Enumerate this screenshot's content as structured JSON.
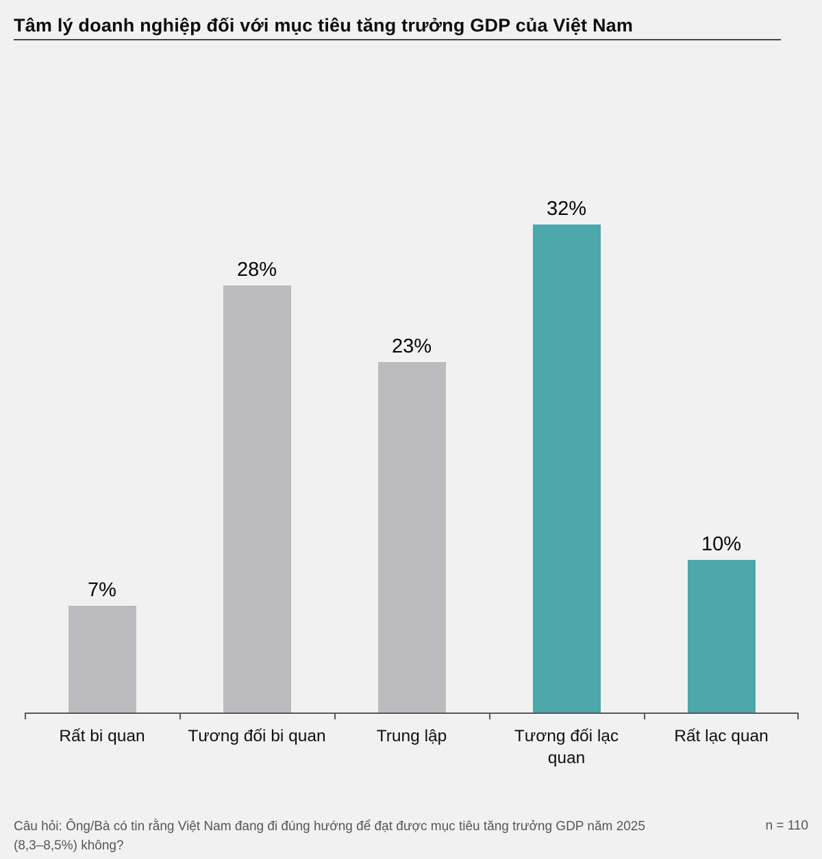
{
  "header": {
    "title": "Tâm lý doanh nghiệp đối với mục tiêu tăng trưởng GDP của Việt Nam"
  },
  "chart_data": {
    "type": "bar",
    "title": "Tâm lý doanh nghiệp đối với mục tiêu tăng trưởng GDP của Việt Nam",
    "categories": [
      "Rất bi quan",
      "Tương đối bi quan",
      "Trung lập",
      "Tương đối lạc quan",
      "Rất lạc quan"
    ],
    "display_labels": [
      "Rất bi quan",
      "Tương đối bi quan",
      "Trung lập",
      "Tương đối lạc\nquan",
      "Rất lạc quan"
    ],
    "values": [
      7,
      28,
      23,
      32,
      10
    ],
    "value_labels": [
      "7%",
      "28%",
      "23%",
      "32%",
      "10%"
    ],
    "colors": [
      "#bcbcbe",
      "#bcbcbe",
      "#bcbcbe",
      "#4ba7a9",
      "#4ba7a9"
    ],
    "xlabel": "",
    "ylabel": "",
    "ylim": [
      0,
      35
    ],
    "grid": false,
    "legend": false,
    "unit": "%"
  },
  "colors": {
    "background": "#f1f1f1",
    "bar_gray": "#bcbcbe",
    "bar_teal": "#4ba7a9",
    "axis": "#55555a",
    "footnote_text": "#56565a",
    "title_text": "#0d0d0d"
  },
  "footer": {
    "question_line1": "Câu hỏi: Ông/Bà có tin rằng Việt Nam đang đi đúng hướng để đạt được mục tiêu tăng trưởng GDP năm 2025",
    "question_line2": "(8,3–8,5%) không?",
    "question_full": "Câu hỏi: Ông/Bà có tin rằng Việt Nam đang đi đúng hướng để đạt được mục tiêu tăng trưởng GDP năm 2025 (8,3–8,5%) không?",
    "sample_size": "n = 110"
  }
}
